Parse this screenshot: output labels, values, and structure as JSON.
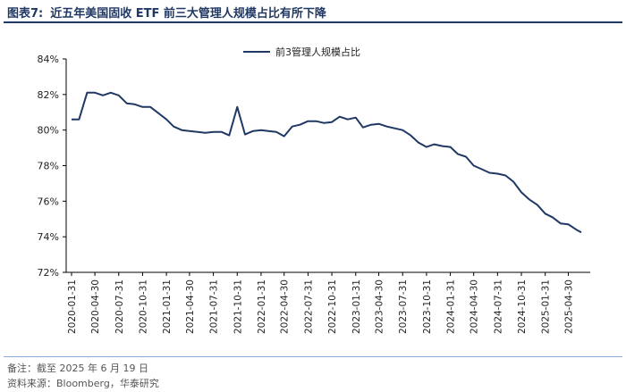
{
  "header": {
    "figure_no": "图表7:",
    "title": "近五年美国固收 ETF 前三大管理人规模占比有所下降"
  },
  "footer": {
    "note": "备注：截至 2025 年 6 月 19 日",
    "source": "资料来源：Bloomberg，华泰研究"
  },
  "colors": {
    "series": "#1f3864",
    "axis": "#000000",
    "title": "#1f3864"
  },
  "chart_data": {
    "type": "line",
    "title": "",
    "xlabel": "",
    "ylabel": "",
    "ylim": [
      72,
      84
    ],
    "yticks": [
      "72%",
      "74%",
      "76%",
      "78%",
      "80%",
      "82%",
      "84%"
    ],
    "yticks_values": [
      72,
      74,
      76,
      78,
      80,
      82,
      84
    ],
    "grid": false,
    "legend_position": "top-center",
    "x_tick_labels": [
      "2020-01-31",
      "2020-04-30",
      "2020-07-31",
      "2020-10-31",
      "2021-01-31",
      "2021-04-30",
      "2021-07-31",
      "2021-10-31",
      "2022-01-31",
      "2022-04-30",
      "2022-07-31",
      "2022-10-31",
      "2023-01-31",
      "2023-04-30",
      "2023-07-31",
      "2023-10-31",
      "2024-01-31",
      "2024-04-30",
      "2024-07-31",
      "2024-10-31",
      "2025-01-31",
      "2025-04-30"
    ],
    "series": [
      {
        "name": "前3管理人规模占比",
        "x": [
          "2020-01-31",
          "2020-02-29",
          "2020-03-31",
          "2020-04-30",
          "2020-05-31",
          "2020-06-30",
          "2020-07-31",
          "2020-08-31",
          "2020-09-30",
          "2020-10-31",
          "2020-11-30",
          "2020-12-31",
          "2021-01-31",
          "2021-02-28",
          "2021-03-31",
          "2021-04-30",
          "2021-05-31",
          "2021-06-30",
          "2021-07-31",
          "2021-08-31",
          "2021-09-30",
          "2021-10-31",
          "2021-11-30",
          "2021-12-31",
          "2022-01-31",
          "2022-02-28",
          "2022-03-31",
          "2022-04-30",
          "2022-05-31",
          "2022-06-30",
          "2022-07-31",
          "2022-08-31",
          "2022-09-30",
          "2022-10-31",
          "2022-11-30",
          "2022-12-31",
          "2023-01-31",
          "2023-02-28",
          "2023-03-31",
          "2023-04-30",
          "2023-05-31",
          "2023-06-30",
          "2023-07-31",
          "2023-08-31",
          "2023-09-30",
          "2023-10-31",
          "2023-11-30",
          "2023-12-31",
          "2024-01-31",
          "2024-02-29",
          "2024-03-31",
          "2024-04-30",
          "2024-05-31",
          "2024-06-30",
          "2024-07-31",
          "2024-08-31",
          "2024-09-30",
          "2024-10-31",
          "2024-11-30",
          "2024-12-31",
          "2025-01-31",
          "2025-02-28",
          "2025-03-31",
          "2025-04-30",
          "2025-05-31",
          "2025-06-19"
        ],
        "values": [
          80.6,
          80.6,
          82.1,
          82.1,
          81.95,
          82.1,
          81.95,
          81.5,
          81.45,
          81.3,
          81.3,
          80.95,
          80.6,
          80.2,
          80.0,
          79.95,
          79.9,
          79.85,
          79.9,
          79.9,
          79.7,
          81.3,
          79.75,
          79.95,
          80.0,
          79.95,
          79.9,
          79.65,
          80.2,
          80.3,
          80.5,
          80.5,
          80.4,
          80.45,
          80.75,
          80.6,
          80.7,
          80.15,
          80.3,
          80.35,
          80.2,
          80.1,
          80.0,
          79.7,
          79.3,
          79.05,
          79.2,
          79.1,
          79.05,
          78.65,
          78.5,
          78.0,
          77.8,
          77.6,
          77.55,
          77.45,
          77.1,
          76.5,
          76.1,
          75.8,
          75.3,
          75.1,
          74.75,
          74.7,
          74.4,
          74.25
        ]
      }
    ]
  }
}
